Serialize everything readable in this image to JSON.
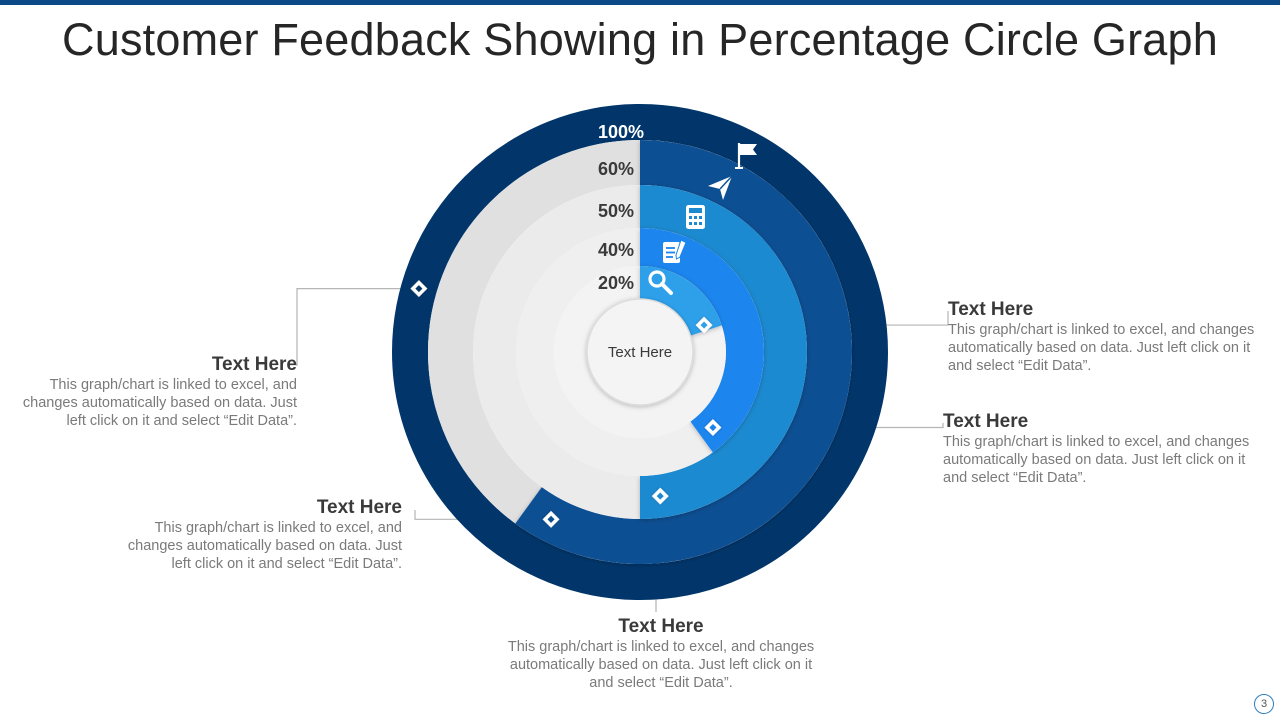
{
  "title": "Customer Feedback Showing in Percentage Circle Graph",
  "page_number": "3",
  "chart_data": {
    "type": "pie",
    "title": "Customer Feedback Showing in Percentage Circle Graph",
    "center_label": "Text Here",
    "rings": [
      {
        "label": "100%",
        "value": 100,
        "color": "#02366b",
        "track_color": null
      },
      {
        "label": "60%",
        "value": 60,
        "color": "#0b4f93",
        "track_color": "#e0e0e0"
      },
      {
        "label": "50%",
        "value": 50,
        "color": "#1d8ad0",
        "track_color": "#ebebeb"
      },
      {
        "label": "40%",
        "value": 40,
        "color": "#1a85ee",
        "track_color": "#efefef"
      },
      {
        "label": "20%",
        "value": 20,
        "color": "#2fa0ea",
        "track_color": "#f3f3f3"
      }
    ],
    "ring_icons": [
      "flag-icon",
      "paper-plane-icon",
      "calculator-icon",
      "document-pen-icon",
      "search-icon"
    ]
  },
  "callouts": [
    {
      "heading": "Text Here",
      "body": "This graph/chart is linked to excel, and changes automatically based on data. Just left click on it and select “Edit Data”."
    },
    {
      "heading": "Text Here",
      "body": "This graph/chart is linked to excel, and changes automatically based on data. Just left click on it and select “Edit Data”."
    },
    {
      "heading": "Text Here",
      "body": "This graph/chart is linked to excel, and changes automatically based on data. Just left click on it and select “Edit Data”."
    },
    {
      "heading": "Text Here",
      "body": "This graph/chart is linked to excel, and changes automatically based on data. Just left click on it and select “Edit Data”."
    },
    {
      "heading": "Text Here",
      "body": "This graph/chart is linked to excel, and changes automatically based on data. Just left click on it and select “Edit Data”."
    }
  ],
  "colors": {
    "accent": "#0b4a86",
    "connector": "#b5b5b5",
    "marker": "#ffffff"
  }
}
